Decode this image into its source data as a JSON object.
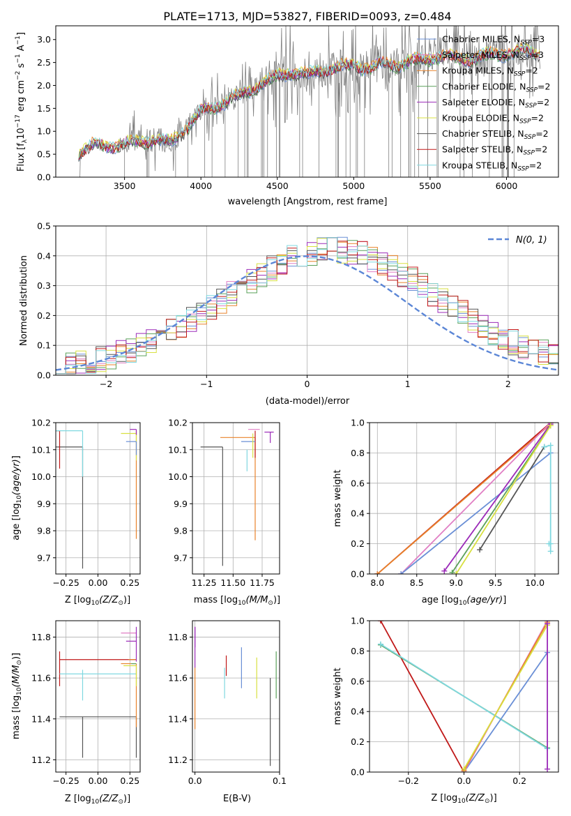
{
  "figure_title": "PLATE=1713, MJD=53827, FIBERID=0093, z=0.484",
  "colors": {
    "data": "#7f7f7f",
    "chabrier_miles": "#6a8fd6",
    "salpeter_miles": "#e07ec4",
    "kroupa_miles": "#e8822a",
    "chabrier_elodie": "#5aa05a",
    "salpeter_elodie": "#9b2ab8",
    "kroupa_elodie": "#d8e040",
    "chabrier_stelib": "#555555",
    "salpeter_stelib": "#c01818",
    "kroupa_stelib": "#7fd8e0",
    "gaussian": "#5b86d6",
    "grid": "#b0b0b0"
  },
  "legend_spec": [
    {
      "label": "Chabrier MILES, N",
      "sub": "SSP",
      "eq": "=3",
      "color": "#6a8fd6"
    },
    {
      "label": "Salpeter MILES, N",
      "sub": "SSP",
      "eq": "=3",
      "color": "#e07ec4"
    },
    {
      "label": "Kroupa MILES, N",
      "sub": "SSP",
      "eq": "=2",
      "color": "#e8822a"
    },
    {
      "label": "Chabrier ELODIE, N",
      "sub": "SSP",
      "eq": "=2",
      "color": "#5aa05a"
    },
    {
      "label": "Salpeter ELODIE, N",
      "sub": "SSP",
      "eq": "=2",
      "color": "#9b2ab8"
    },
    {
      "label": "Kroupa ELODIE, N",
      "sub": "SSP",
      "eq": "=2",
      "color": "#d8e040"
    },
    {
      "label": "Chabrier STELIB, N",
      "sub": "SSP",
      "eq": "=2",
      "color": "#555555"
    },
    {
      "label": "Salpeter STELIB, N",
      "sub": "SSP",
      "eq": "=2",
      "color": "#c01818"
    },
    {
      "label": "Kroupa STELIB, N",
      "sub": "SSP",
      "eq": "=2",
      "color": "#7fd8e0"
    }
  ],
  "chart_data": [
    {
      "id": "spectrum",
      "type": "line",
      "xlabel": "wavelength [Angstrom, rest frame]",
      "ylabel": "Flux [f",
      "ylabel_parts": {
        "lambda_sub": "λ",
        "mid": "10",
        "exp1": "−17",
        "mid2": " erg cm",
        "exp2": "−2",
        "mid3": " s",
        "exp3": "−1",
        "mid4": " A",
        "exp4": "−1",
        "end": "]"
      },
      "xlim": [
        3050,
        6340
      ],
      "ylim": [
        0,
        3.3
      ],
      "xticks": [
        3500,
        4000,
        4500,
        5000,
        5500,
        6000
      ],
      "yticks": [
        0.0,
        0.5,
        1.0,
        1.5,
        2.0,
        2.5,
        3.0
      ],
      "grid": false,
      "legend_position": "upper-right",
      "series_anchor": {
        "x": [
          3200,
          3300,
          3400,
          3500,
          3600,
          3700,
          3800,
          3900,
          4000,
          4100,
          4200,
          4300,
          4400,
          4500,
          4600,
          4700,
          4800,
          4900,
          5000,
          5100,
          5200,
          5300,
          5400,
          5500,
          5600,
          5700,
          5800,
          5900,
          6000,
          6100,
          6200
        ],
        "y": [
          0.55,
          0.72,
          0.68,
          0.75,
          0.78,
          0.82,
          0.76,
          1.05,
          1.45,
          1.55,
          1.72,
          1.85,
          2.05,
          2.2,
          2.3,
          2.25,
          2.35,
          2.4,
          2.45,
          2.38,
          2.5,
          2.45,
          2.55,
          2.6,
          2.65,
          2.58,
          2.6,
          2.68,
          2.7,
          2.75,
          2.72
        ]
      }
    },
    {
      "id": "residuals",
      "type": "step-histogram",
      "xlabel": "(data-model)/error",
      "ylabel": "Normed distribution",
      "xlim": [
        -2.5,
        2.5
      ],
      "ylim": [
        0,
        0.5
      ],
      "xticks": [
        -2,
        -1,
        0,
        1,
        2
      ],
      "yticks": [
        0.0,
        0.1,
        0.2,
        0.3,
        0.4,
        0.5
      ],
      "grid": true,
      "gaussian_label": "N(0, 1)",
      "bin_width": 0.1
    },
    {
      "id": "age_vs_Z",
      "type": "errorbar",
      "xlabel": "Z [log",
      "xlabel_tail": "(Z/Z",
      "ylabel": "age  [log",
      "xlim": [
        -0.33,
        0.33
      ],
      "ylim": [
        9.64,
        10.2
      ],
      "xticks": [
        -0.25,
        0.0,
        0.25
      ],
      "xticklabels": [
        "−0.25",
        "0.00",
        "0.25"
      ],
      "yticks": [
        9.7,
        9.8,
        9.9,
        10.0,
        10.1,
        10.2
      ],
      "grid": true,
      "points": [
        {
          "x": 0.3,
          "y": 10.17,
          "xerr": 0.0,
          "ydown": 0.4,
          "color": "#e8822a",
          "xl": 0.0
        },
        {
          "x": -0.12,
          "y": 10.11,
          "xl": 0.42,
          "ydown": 0.45,
          "color": "#555555"
        },
        {
          "x": -0.3,
          "y": 10.17,
          "xl": 0.6,
          "ydown": 0.14,
          "color": "#c01818"
        },
        {
          "x": -0.12,
          "y": 10.17,
          "xl": 0.42,
          "ydown": 0.17,
          "color": "#7fd8e0"
        },
        {
          "x": 0.3,
          "y": 10.16,
          "xl": 0.12,
          "ydown": 0.1,
          "color": "#d8e040"
        },
        {
          "x": 0.3,
          "y": 10.13,
          "xl": 0.08,
          "ydown": 0.05,
          "color": "#6a8fd6"
        },
        {
          "x": 0.3,
          "y": 10.175,
          "xl": 0.05,
          "ydown": 0.02,
          "color": "#9b2ab8"
        }
      ]
    },
    {
      "id": "age_vs_mass",
      "type": "errorbar",
      "xlabel": "mass [log",
      "ylabel": "",
      "xlim": [
        11.15,
        11.9
      ],
      "ylim": [
        9.64,
        10.2
      ],
      "xticks": [
        11.25,
        11.5,
        11.75
      ],
      "xticklabels": [
        "11.25",
        "11.50",
        "11.75"
      ],
      "yticks": [
        9.7,
        9.8,
        9.9,
        10.0,
        10.1,
        10.2
      ],
      "grid": true,
      "points": [
        {
          "x": 11.41,
          "y": 10.11,
          "xl": 0.19,
          "xr": 0.0,
          "ydown": 0.44,
          "color": "#555555"
        },
        {
          "x": 11.69,
          "y": 10.145,
          "xl": 0.3,
          "ydown": 0.38,
          "color": "#e8822a"
        },
        {
          "x": 11.62,
          "y": 10.1,
          "xl": 0.0,
          "ydown": 0.08,
          "color": "#7fd8e0"
        },
        {
          "x": 11.69,
          "y": 10.17,
          "xl": 0.0,
          "ydown": 0.1,
          "color": "#c01818"
        },
        {
          "x": 11.57,
          "y": 10.13,
          "xl": 0.0,
          "xr": 0.12,
          "ydown": 0.0,
          "color": "#6a8fd6"
        },
        {
          "x": 11.82,
          "y": 10.165,
          "xl": 0.05,
          "xr": 0.03,
          "ydown": 0.04,
          "color": "#9b2ab8"
        },
        {
          "x": 11.67,
          "y": 10.16,
          "xl": 0.0,
          "ydown": 0.09,
          "color": "#d8e040"
        },
        {
          "x": 11.73,
          "y": 10.175,
          "xl": 0.1,
          "ydown": 0.0,
          "color": "#e07ec4"
        }
      ]
    },
    {
      "id": "weight_vs_age",
      "type": "line",
      "xlabel": "age  [log",
      "ylabel": "mass weight",
      "xlim": [
        7.9,
        10.3
      ],
      "ylim": [
        0,
        1.0
      ],
      "xticks": [
        8.0,
        8.5,
        9.0,
        9.5,
        10.0
      ],
      "xticklabels": [
        "8.0",
        "8.5",
        "9.0",
        "9.5",
        "10.0"
      ],
      "yticks": [
        0.0,
        0.2,
        0.4,
        0.6,
        0.8,
        1.0
      ],
      "grid": true,
      "series": [
        {
          "color": "#c01818",
          "x": [
            8.0,
            10.2
          ],
          "y": [
            0.0,
            1.0
          ]
        },
        {
          "color": "#e8822a",
          "x": [
            8.0,
            10.2
          ],
          "y": [
            0.0,
            0.99
          ]
        },
        {
          "color": "#e07ec4",
          "x": [
            8.3,
            10.2
          ],
          "y": [
            0.0,
            1.0
          ]
        },
        {
          "color": "#6a8fd6",
          "x": [
            8.3,
            10.2
          ],
          "y": [
            0.0,
            0.8
          ]
        },
        {
          "color": "#9b2ab8",
          "x": [
            8.85,
            10.2
          ],
          "y": [
            0.02,
            0.99
          ]
        },
        {
          "color": "#5aa05a",
          "x": [
            8.95,
            10.2
          ],
          "y": [
            0.01,
            0.98
          ]
        },
        {
          "color": "#d8e040",
          "x": [
            9.0,
            10.2
          ],
          "y": [
            0.0,
            0.98
          ]
        },
        {
          "color": "#555555",
          "x": [
            9.3,
            10.12
          ],
          "y": [
            0.16,
            0.84
          ]
        },
        {
          "color": "#7fd8e0",
          "x": [
            10.12,
            10.2,
            10.2
          ],
          "y": [
            0.84,
            0.85,
            0.15
          ]
        },
        {
          "color": "#7fd8e0",
          "x": [
            10.18,
            10.2
          ],
          "y": [
            0.2,
            0.2
          ]
        }
      ]
    },
    {
      "id": "mass_vs_Z",
      "type": "errorbar",
      "xlabel": "Z [log",
      "ylabel": "mass [log",
      "xlim": [
        -0.33,
        0.33
      ],
      "ylim": [
        11.14,
        11.88
      ],
      "xticks": [
        -0.25,
        0.0,
        0.25
      ],
      "xticklabels": [
        "−0.25",
        "0.00",
        "0.25"
      ],
      "yticks": [
        11.2,
        11.4,
        11.6,
        11.8
      ],
      "grid": true,
      "points": [
        {
          "x": 0.3,
          "y": 11.41,
          "xl": 0.6,
          "ydown": 0.2,
          "yup": 0.0,
          "color": "#555555"
        },
        {
          "x": -0.12,
          "y": 11.41,
          "xl": 0.0,
          "ydown": 0.2,
          "yup": 0.0,
          "color": "#555555"
        },
        {
          "x": -0.3,
          "y": 11.69,
          "xl": 0.0,
          "xr": 0.6,
          "ydown": 0.13,
          "yup": 0.04,
          "color": "#c01818"
        },
        {
          "x": -0.3,
          "y": 11.62,
          "xl": 0.0,
          "xr": 0.6,
          "ydown": 0.0,
          "yup": 0.0,
          "color": "#7fd8e0"
        },
        {
          "x": -0.12,
          "y": 11.62,
          "xl": 0.0,
          "ydown": 0.13,
          "yup": 0.02,
          "color": "#7fd8e0"
        },
        {
          "x": 0.3,
          "y": 11.67,
          "xl": 0.12,
          "ydown": 0.31,
          "yup": 0.0,
          "color": "#e8822a"
        },
        {
          "x": 0.3,
          "y": 11.66,
          "xl": 0.1,
          "ydown": 0.1,
          "yup": 0.0,
          "color": "#d8e040"
        },
        {
          "x": 0.3,
          "y": 11.69,
          "xl": 0.06,
          "ydown": 0.0,
          "yup": 0.0,
          "color": "#e8822a"
        },
        {
          "x": 0.3,
          "y": 11.82,
          "xl": 0.12,
          "ydown": 0.0,
          "yup": 0.0,
          "color": "#e07ec4"
        },
        {
          "x": 0.3,
          "y": 11.78,
          "xl": 0.08,
          "ydown": 0.1,
          "yup": 0.07,
          "color": "#9b2ab8"
        },
        {
          "x": 0.3,
          "y": 11.67,
          "xl": 0.04,
          "ydown": 0.0,
          "yup": 0.0,
          "color": "#5aa05a"
        }
      ]
    },
    {
      "id": "mass_vs_ebv",
      "type": "errorbar",
      "xlabel": "E(B-V)",
      "ylabel": "",
      "xlim": [
        -0.003,
        0.1
      ],
      "ylim": [
        11.14,
        11.88
      ],
      "xticks": [
        0.0,
        0.1
      ],
      "xticklabels": [
        "0.0",
        "0.1"
      ],
      "yticks": [
        11.2,
        11.4,
        11.6,
        11.8
      ],
      "grid": true,
      "points": [
        {
          "x": 0.0,
          "y": 11.85,
          "ydown": 0.2,
          "color": "#9b2ab8"
        },
        {
          "x": 0.0,
          "y": 11.65,
          "ydown": 0.3,
          "color": "#e8822a"
        },
        {
          "x": 0.0,
          "y": 11.85,
          "ydown": 0.1,
          "color": "#9b2ab8"
        },
        {
          "x": 0.035,
          "y": 11.65,
          "ydown": 0.15,
          "color": "#7fd8e0"
        },
        {
          "x": 0.037,
          "y": 11.71,
          "ydown": 0.1,
          "color": "#c01818"
        },
        {
          "x": 0.055,
          "y": 11.75,
          "ydown": 0.2,
          "color": "#6a8fd6"
        },
        {
          "x": 0.073,
          "y": 11.7,
          "ydown": 0.2,
          "color": "#d8e040"
        },
        {
          "x": 0.089,
          "y": 11.6,
          "ydown": 0.43,
          "color": "#555555"
        },
        {
          "x": 0.096,
          "y": 11.73,
          "ydown": 0.23,
          "color": "#5aa05a"
        }
      ]
    },
    {
      "id": "weight_vs_Z",
      "type": "line",
      "xlabel": "Z [log",
      "ylabel": "mass weight",
      "xlim": [
        -0.34,
        0.34
      ],
      "ylim": [
        0,
        1.0
      ],
      "xticks": [
        -0.2,
        0.0,
        0.2
      ],
      "xticklabels": [
        "−0.2",
        "0.0",
        "0.2"
      ],
      "yticks": [
        0.0,
        0.2,
        0.4,
        0.6,
        0.8,
        1.0
      ],
      "grid": true,
      "series": [
        {
          "color": "#c01818",
          "x": [
            -0.3,
            0.0
          ],
          "y": [
            1.0,
            0.0
          ]
        },
        {
          "color": "#5aa05a",
          "x": [
            -0.3,
            0.3
          ],
          "y": [
            0.84,
            0.16
          ]
        },
        {
          "color": "#7fd8e0",
          "x": [
            -0.3,
            0.3
          ],
          "y": [
            0.845,
            0.155
          ]
        },
        {
          "color": "#6a8fd6",
          "x": [
            0.0,
            0.3
          ],
          "y": [
            0.0,
            0.79
          ]
        },
        {
          "color": "#e07ec4",
          "x": [
            0.0,
            0.3
          ],
          "y": [
            0.0,
            1.0
          ]
        },
        {
          "color": "#e8822a",
          "x": [
            0.0,
            0.3
          ],
          "y": [
            0.01,
            0.99
          ]
        },
        {
          "color": "#d8e040",
          "x": [
            0.0,
            0.3
          ],
          "y": [
            0.02,
            0.97
          ]
        },
        {
          "color": "#9b2ab8",
          "x": [
            0.3,
            0.3
          ],
          "y": [
            0.02,
            0.98
          ]
        }
      ]
    }
  ]
}
